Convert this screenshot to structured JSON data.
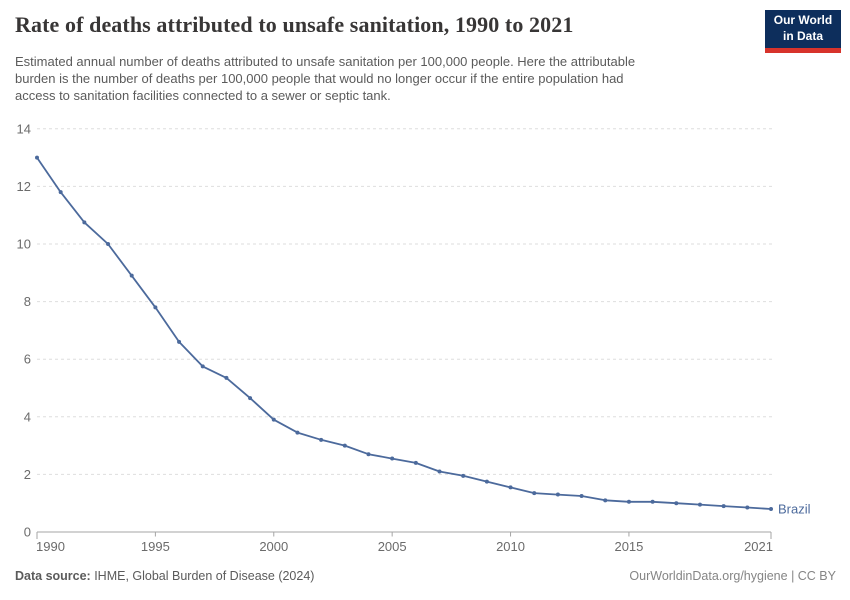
{
  "header": {
    "title": "Rate of deaths attributed to unsafe sanitation, 1990 to 2021",
    "subtitle_lines": [
      "Estimated annual number of deaths attributed to unsafe sanitation per 100,000 people. Here the attributable",
      "burden is the number of deaths per 100,000 people that would no longer occur if the entire population had",
      "access to sanitation facilities connected to a sewer or septic tank."
    ],
    "logo": {
      "line1": "Our World",
      "line2": "in Data"
    }
  },
  "footer": {
    "source_label": "Data source:",
    "source_text": " IHME, Global Burden of Disease (2024)",
    "license_text": "OurWorldinData.org/hygiene | CC BY"
  },
  "colors": {
    "series": "#4c6a9c",
    "grid": "#dedede",
    "axis": "#a5a5a5",
    "tick_label": "#6b6b6b",
    "logo_bg": "#0d2e5c",
    "logo_accent": "#d7332b"
  },
  "chart_data": {
    "type": "line",
    "title": "Rate of deaths attributed to unsafe sanitation, 1990 to 2021",
    "xlabel": "",
    "ylabel": "",
    "x": [
      1990,
      1991,
      1992,
      1993,
      1994,
      1995,
      1996,
      1997,
      1998,
      1999,
      2000,
      2001,
      2002,
      2003,
      2004,
      2005,
      2006,
      2007,
      2008,
      2009,
      2010,
      2011,
      2012,
      2013,
      2014,
      2015,
      2016,
      2017,
      2018,
      2019,
      2020,
      2021
    ],
    "series": [
      {
        "name": "Brazil",
        "values": [
          13.0,
          11.8,
          10.75,
          10.0,
          8.9,
          7.8,
          6.6,
          5.75,
          5.35,
          4.65,
          3.9,
          3.45,
          3.2,
          3.0,
          2.7,
          2.55,
          2.4,
          2.1,
          1.95,
          1.75,
          1.55,
          1.35,
          1.3,
          1.25,
          1.1,
          1.05,
          1.05,
          1.0,
          0.95,
          0.9,
          0.85,
          0.8
        ]
      }
    ],
    "ylim": [
      0,
      14
    ],
    "y_ticks": [
      0,
      2,
      4,
      6,
      8,
      10,
      12,
      14
    ],
    "x_ticks": [
      1990,
      1995,
      2000,
      2005,
      2010,
      2015,
      2021
    ],
    "grid": "horizontal-dashed",
    "legend": "end-of-line-label",
    "markers": true
  }
}
